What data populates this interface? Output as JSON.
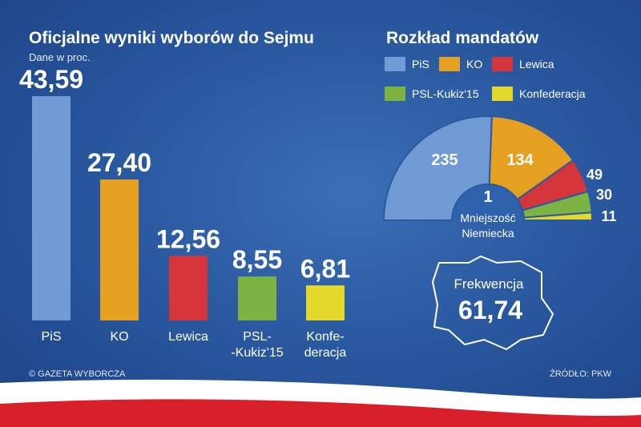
{
  "title": "Oficjalne wyniki wyborów do Sejmu",
  "subtitle": "Dane w proc.",
  "seats_title": "Rozkład mandatów",
  "colors": {
    "PiS": "#6f9ad3",
    "KO": "#e6a021",
    "Lewica": "#d5363b",
    "PSL": "#7cb342",
    "Konf": "#e3d92b"
  },
  "chart_data": [
    {
      "type": "bar",
      "title": "Oficjalne wyniki wyborów do Sejmu",
      "subtitle": "Dane w proc.",
      "categories": [
        "PiS",
        "KO",
        "Lewica",
        "PSL-\n-Kukiz'15",
        "Konfe-\nderacja"
      ],
      "values": [
        43.59,
        27.4,
        12.56,
        8.55,
        6.81
      ],
      "value_labels": [
        "43,59",
        "27,40",
        "12,56",
        "8,55",
        "6,81"
      ],
      "colors": [
        "#6f9ad3",
        "#e6a021",
        "#d5363b",
        "#7cb342",
        "#e3d92b"
      ],
      "ylim": [
        0,
        45
      ],
      "grid": false
    },
    {
      "type": "pie",
      "title": "Rozkład mandatów",
      "variant": "semicircle",
      "labels": [
        "PiS",
        "KO",
        "Lewica",
        "PSL-Kukiz'15",
        "Konfederacja",
        "Mniejszość Niemiecka"
      ],
      "values": [
        235,
        134,
        49,
        30,
        11,
        1
      ],
      "colors": [
        "#6f9ad3",
        "#e6a021",
        "#d5363b",
        "#7cb342",
        "#e3d92b",
        "#6f9ad3"
      ]
    }
  ],
  "legend": [
    {
      "label": "PiS",
      "color": "#6f9ad3"
    },
    {
      "label": "KO",
      "color": "#e6a021"
    },
    {
      "label": "Lewica",
      "color": "#d5363b"
    },
    {
      "label": "PSL-Kukiz'15",
      "color": "#7cb342"
    },
    {
      "label": "Konfederacja",
      "color": "#e3d92b"
    }
  ],
  "minority_label_top": "Mniejszość",
  "minority_label_bottom": "Niemiecka",
  "minority_value": "1",
  "turnout_label": "Frekwencja",
  "turnout_value": "61,74",
  "credit_left": "© GAZETA WYBORCZA",
  "credit_right": "ŹRÓDŁO: PKW"
}
